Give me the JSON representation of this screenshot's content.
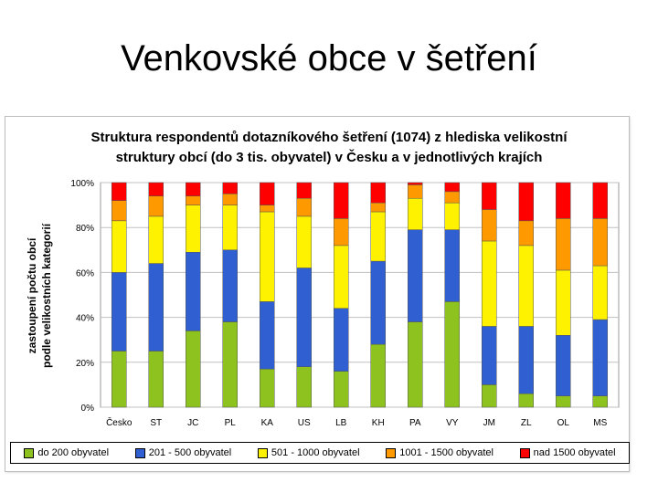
{
  "slide_title": "Venkovské obce v šetření",
  "chart_data": {
    "type": "bar",
    "stacked": "percent",
    "title_line1": "Struktura respondentů dotazníkového šetření (1074) z hlediska velikostní",
    "title_line2": "struktury obcí (do 3 tis. obyvatel) v Česku a v jednotlivých krajích",
    "ylabel_line1": "zastoupení počtu obcí",
    "ylabel_line2": "podle velikostních kategorií",
    "xlabel": "",
    "ylim": [
      0,
      100
    ],
    "yticks": [
      "0%",
      "20%",
      "40%",
      "60%",
      "80%",
      "100%"
    ],
    "grid": true,
    "legend_position": "bottom",
    "categories": [
      "Česko",
      "ST",
      "JC",
      "PL",
      "KA",
      "US",
      "LB",
      "KH",
      "PA",
      "VY",
      "JM",
      "ZL",
      "OL",
      "MS"
    ],
    "series": [
      {
        "name": "do 200 obyvatel",
        "color": "#8DC21F",
        "values": [
          25,
          25,
          34,
          38,
          17,
          18,
          16,
          28,
          38,
          47,
          10,
          6,
          5,
          5
        ]
      },
      {
        "name": "201 - 500 obyvatel",
        "color": "#2F5FD0",
        "values": [
          35,
          39,
          35,
          32,
          30,
          44,
          28,
          37,
          41,
          32,
          26,
          30,
          27,
          34
        ]
      },
      {
        "name": "501 - 1000 obyvatel",
        "color": "#FFF200",
        "values": [
          23,
          21,
          21,
          20,
          40,
          23,
          28,
          22,
          14,
          12,
          38,
          36,
          29,
          24
        ]
      },
      {
        "name": "1001 - 1500 obyvatel",
        "color": "#FF9900",
        "values": [
          9,
          9,
          4,
          5,
          3,
          8,
          12,
          4,
          6,
          5,
          14,
          11,
          23,
          21
        ]
      },
      {
        "name": "nad 1500 obyvatel",
        "color": "#FF0000",
        "values": [
          8,
          6,
          6,
          5,
          10,
          7,
          16,
          9,
          1,
          4,
          12,
          17,
          16,
          16
        ]
      }
    ]
  }
}
